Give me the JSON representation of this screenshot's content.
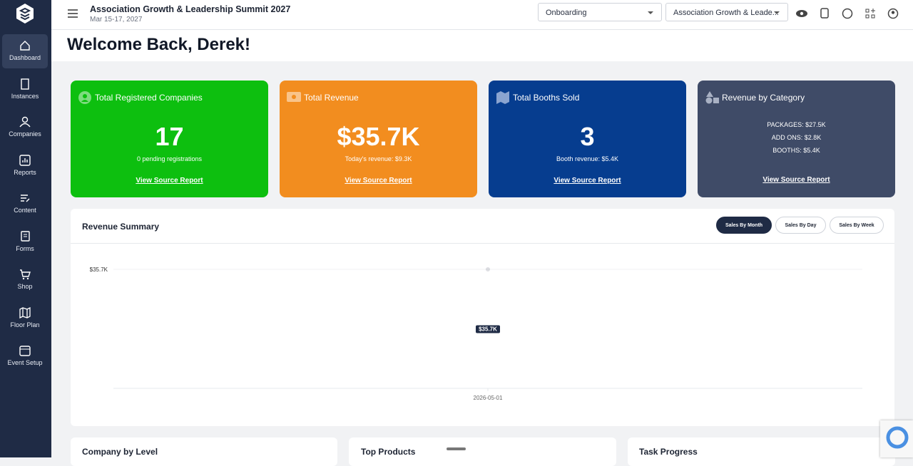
{
  "sidebar": {
    "items": [
      "Dashboard",
      "Instances",
      "Companies",
      "Reports",
      "Content",
      "Forms",
      "Shop",
      "Floor Plan",
      "Event Setup"
    ]
  },
  "header": {
    "title": "Association Growth & Leadership Summit 2027",
    "date": "Mar 15-17, 2027",
    "dropdowns": [
      "Onboarding",
      "Association Growth & Leade..."
    ]
  },
  "welcome": "Welcome Back, Derek!",
  "cards": [
    {
      "title": "Total Registered Companies",
      "value": "17",
      "subtitle": "0 pending registrations",
      "link": "View Source Report"
    },
    {
      "title": "Total Revenue",
      "value": "$35.7K",
      "subtitle": "Today's revenue: $9.3K",
      "link": "View Source Report"
    },
    {
      "title": "Total Booths Sold",
      "value": "3",
      "subtitle": "Booth revenue: $5.4K",
      "link": "View Source Report"
    },
    {
      "title": "Revenue by Category",
      "lines": [
        "PACKAGES: $27.5K",
        "ADD ONS: $2.8K",
        "BOOTHS: $5.4K"
      ],
      "link": "View Source Report"
    }
  ],
  "revenue_summary": {
    "title": "Revenue Summary",
    "tabs": [
      "Sales By Month",
      "Sales By Day",
      "Sales By Week"
    ],
    "chart_data": {
      "type": "line",
      "x": [
        "2026-05-01"
      ],
      "values": [
        35700
      ],
      "value_labels": [
        "$35.7K"
      ],
      "ylim": [
        0,
        35700
      ],
      "yticks": [
        {
          "value": 35700,
          "label": "$35.7K"
        }
      ],
      "color": "#1f2b45"
    }
  },
  "bottom_panels": [
    "Company by Level",
    "Top Products",
    "Task Progress"
  ]
}
